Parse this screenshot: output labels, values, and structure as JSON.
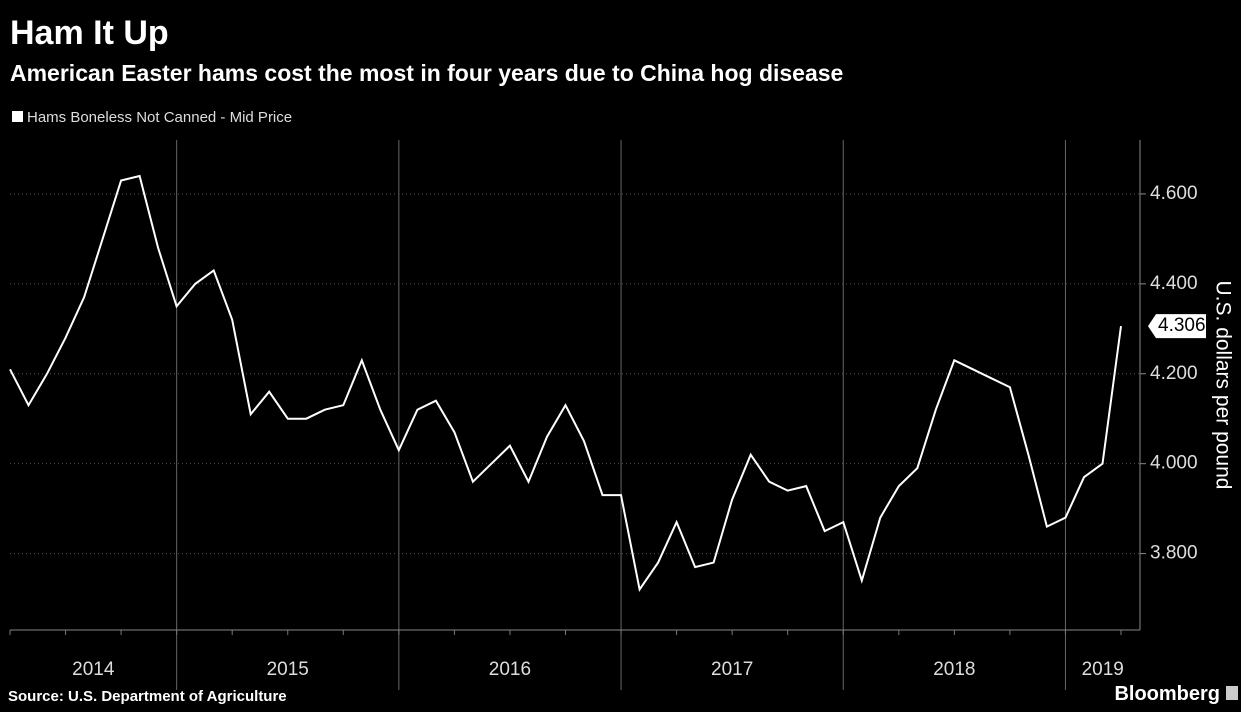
{
  "chart_data": {
    "type": "line",
    "title": "Ham It Up",
    "subtitle": "American Easter hams cost the most in four years due to China hog disease",
    "y_axis_label": "U.S. dollars per pound",
    "source": "Source: U.S. Department of Agriculture",
    "brand": "Bloomberg",
    "x_labels": [
      "2014",
      "2015",
      "2016",
      "2017",
      "2018",
      "2019"
    ],
    "series": [
      {
        "name": "Hams Boneless Not Canned - Mid Price",
        "color": "#ffffff",
        "values": [
          4.21,
          4.13,
          4.2,
          4.28,
          4.37,
          4.5,
          4.63,
          4.64,
          4.48,
          4.35,
          4.4,
          4.43,
          4.32,
          4.11,
          4.16,
          4.1,
          4.1,
          4.12,
          4.13,
          4.23,
          4.12,
          4.03,
          4.12,
          4.14,
          4.07,
          3.96,
          4.0,
          4.04,
          3.96,
          4.06,
          4.13,
          4.05,
          3.93,
          3.93,
          3.72,
          3.78,
          3.87,
          3.77,
          3.78,
          3.92,
          4.02,
          3.96,
          3.94,
          3.95,
          3.85,
          3.87,
          3.74,
          3.88,
          3.95,
          3.99,
          4.12,
          4.23,
          4.21,
          4.19,
          4.17,
          4.02,
          3.86,
          3.88,
          3.97,
          4.0,
          4.306
        ]
      }
    ],
    "ylim": [
      3.63,
      4.72
    ],
    "yticks": [
      {
        "value": 3.8,
        "label": "3.800"
      },
      {
        "value": 4.0,
        "label": "4.000"
      },
      {
        "value": 4.2,
        "label": "4.200"
      },
      {
        "value": 4.4,
        "label": "4.400"
      },
      {
        "value": 4.6,
        "label": "4.600"
      }
    ],
    "grid": true
  }
}
